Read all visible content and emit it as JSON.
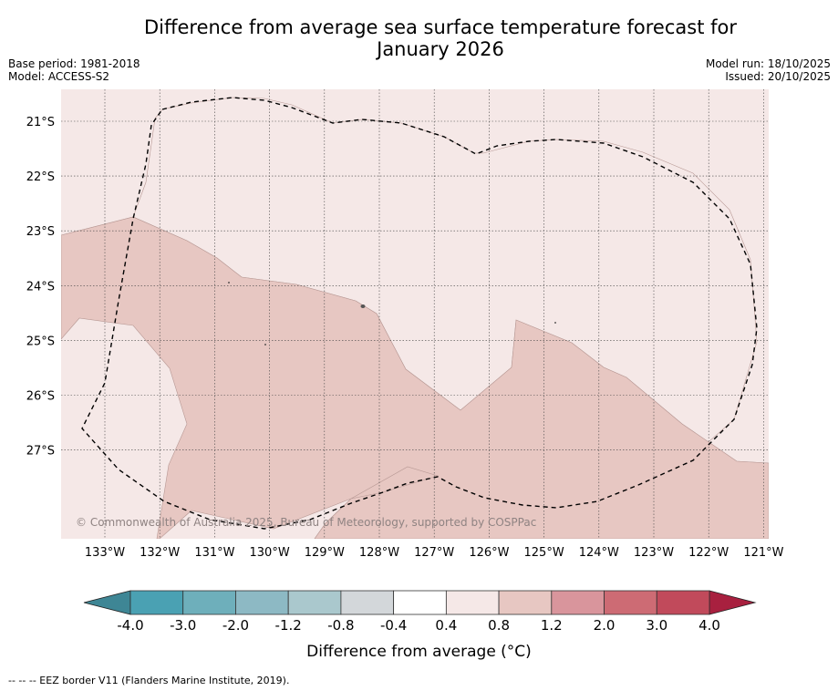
{
  "title_line1": "Difference from average sea surface temperature forecast for",
  "title_line2": "January 2026",
  "base_period": "Base period: 1981-2018",
  "model": "Model: ACCESS-S2",
  "model_run": "Model run: 18/10/2025",
  "issued": "Issued: 20/10/2025",
  "copyright": "© Commonwealth of Australia 2025, Bureau of Meteorology, supported by COSPPac",
  "lon_labels": [
    "133°W",
    "132°W",
    "131°W",
    "130°W",
    "129°W",
    "128°W",
    "127°W",
    "126°W",
    "125°W",
    "124°W",
    "123°W",
    "122°W",
    "121°W"
  ],
  "lat_labels": [
    "21°S",
    "22°S",
    "23°S",
    "24°S",
    "25°S",
    "26°S",
    "27°S"
  ],
  "colorbar": {
    "title": "Difference from average (°C)",
    "tick_labels": [
      "-4.0",
      "-3.0",
      "-2.0",
      "-1.2",
      "-0.8",
      "-0.4",
      "0.4",
      "0.8",
      "1.2",
      "2.0",
      "3.0",
      "4.0"
    ],
    "colors": [
      "#4aa1b3",
      "#6eafbb",
      "#8db9c4",
      "#aac8cd",
      "#d3d7da",
      "#ffffff",
      "#f5e8e7",
      "#e7c7c2",
      "#d9959c",
      "#cd6b74",
      "#c14a5b"
    ],
    "under_color": "#3e8695",
    "over_color": "#a8203f"
  },
  "legend_note": "--  --  -- EEZ border V11 (Flanders Marine Institute, 2019).",
  "colors": {
    "background": "#f5e8e7",
    "anomaly_region": "#e7c7c2"
  }
}
